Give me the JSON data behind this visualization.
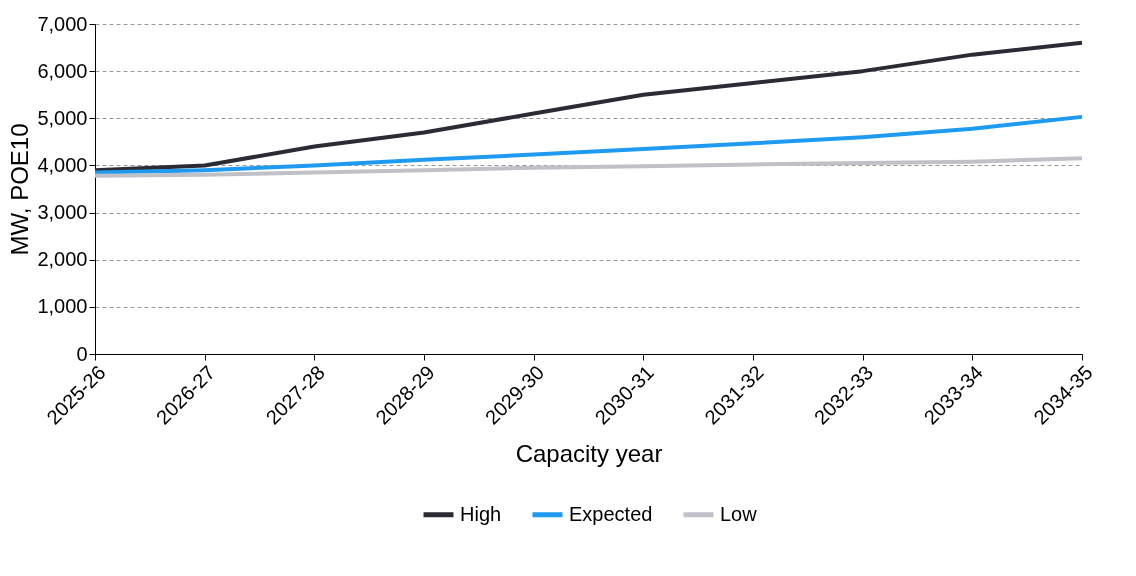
{
  "chart_data": {
    "type": "line",
    "xlabel": "Capacity year",
    "ylabel": "MW, POE10",
    "categories": [
      "2025-26",
      "2026-27",
      "2027-28",
      "2028-29",
      "2029-30",
      "2030-31",
      "2031-32",
      "2032-33",
      "2033-34",
      "2034-35"
    ],
    "series": [
      {
        "name": "High",
        "color": "#2b2a35",
        "values": [
          3900,
          4000,
          4400,
          4700,
          5100,
          5500,
          5750,
          6000,
          6350,
          6600
        ]
      },
      {
        "name": "Expected",
        "color": "#1e9bf0",
        "values": [
          3850,
          3900,
          4000,
          4120,
          4230,
          4350,
          4470,
          4600,
          4780,
          5030
        ]
      },
      {
        "name": "Low",
        "color": "#c0c0c8",
        "values": [
          3780,
          3800,
          3850,
          3900,
          3950,
          3980,
          4020,
          4050,
          4080,
          4150
        ]
      }
    ],
    "ylim": [
      0,
      7000
    ],
    "yticks": [
      0,
      {
        "value": 1000,
        "label": "1,000"
      },
      {
        "value": 2000,
        "label": "2,000"
      },
      {
        "value": 3000,
        "label": "3,000"
      },
      {
        "value": 4000,
        "label": "4,000"
      },
      {
        "value": 5000,
        "label": "5,000"
      },
      {
        "value": 6000,
        "label": "6,000"
      },
      {
        "value": 7000,
        "label": "7,000"
      }
    ],
    "grid": "y",
    "legend": "bottom",
    "line_style": "solid",
    "marker": "none"
  }
}
